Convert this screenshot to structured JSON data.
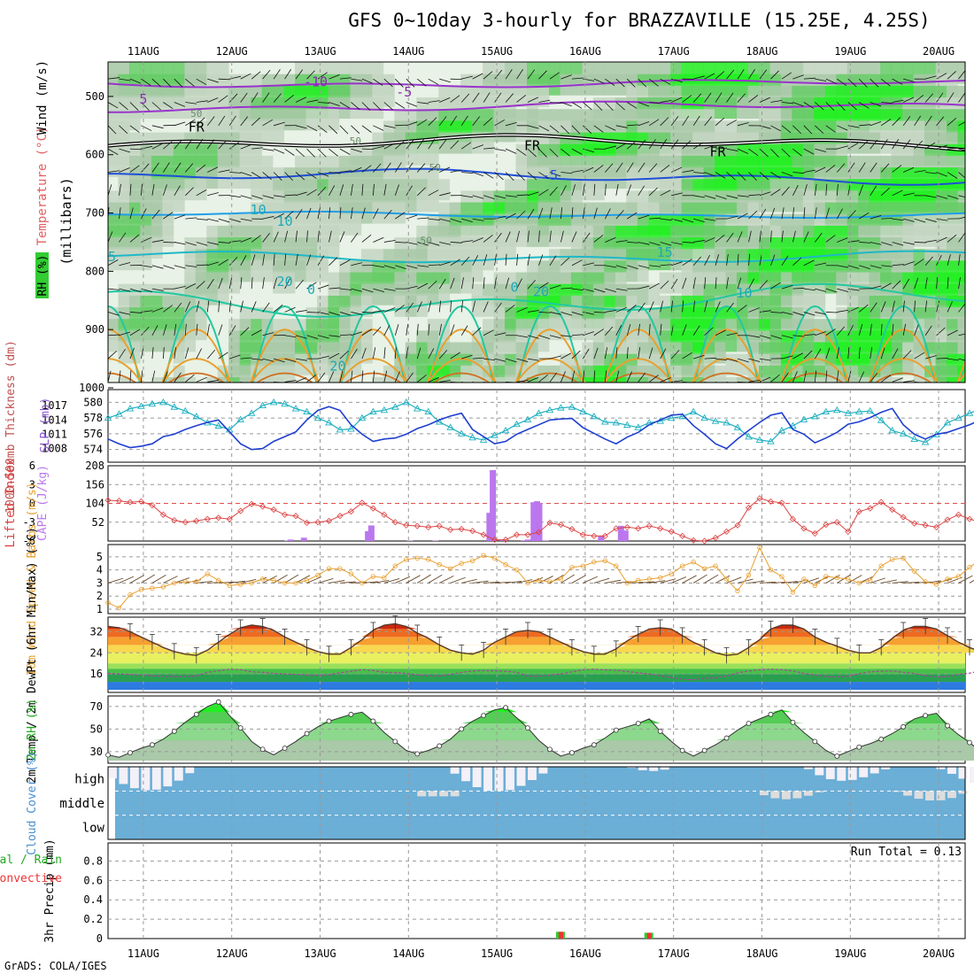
{
  "chart_data": [
    {
      "type": "contour",
      "name": "Pressure-level cross section",
      "title": "GFS 0~10day 3-hourly for BRAZZAVILLE (15.25E, 4.25S)",
      "ylabel": "(millibars)",
      "ylabel_parts": [
        "RH (%)",
        "Temperature (°C)",
        "Wind (m/s)"
      ],
      "y_ticks": [
        500,
        600,
        700,
        800,
        900,
        1000
      ],
      "ylim": [
        1000,
        450
      ],
      "contour_labels": [
        {
          "text": "-10",
          "day": 8.95,
          "p": 483
        },
        {
          "text": "-5",
          "day": 9.95,
          "p": 500
        },
        {
          "text": "5",
          "day": 7.0,
          "p": 512
        },
        {
          "text": "50",
          "day": 7.6,
          "p": 535
        },
        {
          "text": "FR",
          "day": 7.6,
          "p": 560
        },
        {
          "text": "FR",
          "day": 15.4,
          "p": 592
        },
        {
          "text": "FR",
          "day": 17.5,
          "p": 603
        },
        {
          "text": "50",
          "day": 9.4,
          "p": 582
        },
        {
          "text": "-5",
          "day": 11.6,
          "p": 643
        },
        {
          "text": "50",
          "day": 14.3,
          "p": 628
        },
        {
          "text": "10",
          "day": 8.3,
          "p": 702
        },
        {
          "text": "10",
          "day": 12.6,
          "p": 722
        },
        {
          "text": "50",
          "day": 10.2,
          "p": 753
        },
        {
          "text": "15",
          "day": 6.6,
          "p": 783
        },
        {
          "text": "15",
          "day": 16.9,
          "p": 775
        },
        {
          "text": "20",
          "day": 12.6,
          "p": 825
        },
        {
          "text": "20",
          "day": 15.5,
          "p": 843
        },
        {
          "text": "0",
          "day": 15.2,
          "p": 835
        },
        {
          "text": "0",
          "day": 8.9,
          "p": 839
        },
        {
          "text": "20",
          "day": 9.2,
          "p": 970
        },
        {
          "text": "10",
          "day": 17.8,
          "p": 845
        }
      ],
      "isotherms": [
        {
          "label": "-10",
          "color": "#9933cc",
          "base": 478,
          "amp": 8
        },
        {
          "label": "-5",
          "color": "#9933cc",
          "base": 518,
          "amp": 10
        },
        {
          "label": "FR",
          "color": "#000000",
          "base": 580,
          "amp": 14
        },
        {
          "label": "-5",
          "color": "#1f4fd8",
          "base": 638,
          "amp": 14
        },
        {
          "label": "10",
          "color": "#1f9ee8",
          "base": 703,
          "amp": 6
        },
        {
          "label": "15",
          "color": "#1fb8c8",
          "base": 775,
          "amp": 12
        },
        {
          "label": "20",
          "color": "#22c8a0",
          "base": 850,
          "amp": 30
        }
      ]
    },
    {
      "type": "line",
      "name": "Thickness and SLP",
      "ylabel_left": "1000-500mb Thickness (dm)",
      "ylabel_right": "SLP (mb)",
      "y_ticks_left": [
        574,
        576,
        578,
        580
      ],
      "y_ticks_right": [
        1008,
        1011,
        1014,
        1017
      ],
      "series": [
        {
          "name": "Thickness",
          "color": "#1fb0c0",
          "values": [
            578.0,
            578.5,
            579.2,
            579.5,
            579.8,
            580.0,
            579.4,
            578.9,
            578.2,
            577.4,
            577.0,
            576.5,
            577.8,
            578.6,
            579.6,
            580.0,
            579.8,
            579.2,
            578.8,
            578.0,
            577.4,
            576.5,
            576.6,
            578.0,
            578.8,
            579.0,
            579.4,
            580.0,
            579.2,
            578.8,
            577.5,
            576.8,
            576.0,
            575.5,
            575.2,
            575.8,
            576.4,
            577.2,
            577.8,
            578.6,
            579.0,
            579.3,
            579.4,
            578.8,
            578.2,
            577.5,
            577.4,
            577.1,
            576.8,
            577.4,
            577.6,
            578.0,
            578.2,
            578.8,
            578.0,
            577.6,
            577.4,
            576.8,
            575.6,
            575.2,
            575.0,
            576.4,
            577.0,
            577.8,
            578.2,
            578.8,
            579.0,
            578.6,
            578.8,
            578.9,
            577.7,
            576.4,
            576.0,
            575.3,
            574.9,
            575.9,
            577.4,
            578.0,
            578.6,
            579.2,
            578.8,
            578.5,
            579.0,
            579.2,
            577.6,
            576.7,
            576.0,
            575.4,
            574.2,
            574.0,
            574.8,
            575.8,
            576.8,
            577.4,
            577.3,
            577.2,
            577.1,
            577.0,
            576.6,
            576.1,
            575.6,
            575.2,
            574.9
          ]
        },
        {
          "name": "SLP",
          "color": "#1f3fd0",
          "values": [
            1010.0,
            1009.0,
            1008.2,
            1008.5,
            1009.0,
            1010.5,
            1011.0,
            1012.0,
            1012.8,
            1013.5,
            1014.0,
            1011.5,
            1009.0,
            1007.8,
            1008.0,
            1009.5,
            1010.5,
            1011.5,
            1014.0,
            1016.0,
            1016.8,
            1016.0,
            1013.0,
            1011.0,
            1009.5,
            1010.0,
            1010.2,
            1011.0,
            1012.2,
            1013.0,
            1014.0,
            1014.8,
            1015.4,
            1012.0,
            1010.5,
            1009.0,
            1009.5,
            1011.0,
            1012.0,
            1013.0,
            1014.0,
            1014.2,
            1014.3,
            1012.4,
            1011.2,
            1010.0,
            1009.0,
            1010.4,
            1011.4,
            1013.0,
            1014.0,
            1015.0,
            1015.2,
            1012.8,
            1011.0,
            1009.0,
            1008.0,
            1010.0,
            1011.8,
            1013.5,
            1015.0,
            1015.5,
            1012.0,
            1011.0,
            1009.2,
            1010.2,
            1011.4,
            1013.1,
            1013.6,
            1014.5,
            1015.6,
            1016.4,
            1013.0,
            1011.0,
            1010.0,
            1011.0,
            1011.4,
            1012.2,
            1013.0,
            1014.0,
            1014.6,
            1016.0,
            1016.6,
            1017.3,
            1016.4,
            1016.5,
            1017.4,
            1018.0,
            1017.3,
            1014.0,
            1011.3,
            1012.6,
            1013.0,
            1013.4,
            1013.6,
            1014.0,
            1015.0,
            1016.4,
            1016.9,
            1017.0,
            1016.4,
            1016.0,
            1017.5
          ]
        }
      ]
    },
    {
      "type": "bar+line",
      "name": "CAPE and Lifted Index",
      "ylabel_left": "Lifted Index",
      "ylabel_right": "CAPE (J/kg)",
      "y_ticks_left": [
        -6,
        -3,
        0,
        3,
        6
      ],
      "y_ticks_right": [
        52,
        104,
        156,
        208
      ],
      "cape": [
        [
          16.2,
          1
        ],
        [
          16.5,
          4
        ],
        [
          17.7,
          9
        ],
        [
          23.5,
          27
        ],
        [
          23.8,
          43
        ],
        [
          27.3,
          1
        ],
        [
          29.6,
          1
        ],
        [
          34.5,
          78
        ],
        [
          34.8,
          196
        ],
        [
          35.7,
          3
        ],
        [
          37.6,
          2
        ],
        [
          38.0,
          4
        ],
        [
          38.5,
          107
        ],
        [
          38.8,
          110
        ],
        [
          39.0,
          105
        ],
        [
          39.6,
          1
        ],
        [
          44.6,
          14
        ],
        [
          46.4,
          42
        ],
        [
          46.8,
          29
        ]
      ],
      "lifted_index": [
        -0.5,
        -0.4,
        -0.2,
        -0.3,
        0.3,
        1.8,
        2.7,
        3.0,
        2.8,
        2.5,
        2.3,
        2.5,
        1.2,
        0.1,
        0.5,
        1.0,
        1.8,
        2.0,
        3.1,
        3.0,
        2.8,
        2.0,
        1.3,
        -0.1,
        0.8,
        1.8,
        3.0,
        3.5,
        3.6,
        3.8,
        3.6,
        4.2,
        4.1,
        4.4,
        5.0,
        5.8,
        5.8,
        5.0,
        5.0,
        4.6,
        3.1,
        3.4,
        4.1,
        5.0,
        5.2,
        5.2,
        4.0,
        3.8,
        4.0,
        3.6,
        4.0,
        4.5,
        5.2,
        5.9,
        6.0,
        5.5,
        4.5,
        3.5,
        0.7,
        -0.8,
        -0.3,
        -0.1,
        2.5,
        4.0,
        4.8,
        3.4,
        3.0,
        4.5,
        1.3,
        0.8,
        -0.2,
        1.0,
        2.2,
        3.2,
        3.5,
        3.8,
        2.6,
        1.8,
        2.5,
        3.0,
        3.7,
        4.3,
        5.5,
        6.2,
        5.6,
        5.8,
        4.7,
        4.3,
        3.9,
        3.6,
        3.2,
        2.4,
        0.8,
        0.6,
        0.8,
        1.2,
        1.9,
        2.6,
        2.4,
        2.5,
        3.2,
        4.0,
        4.2
      ]
    },
    {
      "type": "line",
      "name": "10m Wind",
      "ylabel": "10m Wind Speed & Barbs (m/s)",
      "y_ticks": [
        1,
        2,
        3,
        4,
        5
      ],
      "series": [
        {
          "name": "Speed",
          "color": "#e8a030",
          "values": [
            1.5,
            1.1,
            2.1,
            2.5,
            2.6,
            2.7,
            3.0,
            3.1,
            3.1,
            3.7,
            3.2,
            2.8,
            2.9,
            3.0,
            3.3,
            3.2,
            3.0,
            3.0,
            3.2,
            3.6,
            4.1,
            4.1,
            3.7,
            3.0,
            3.5,
            3.4,
            4.3,
            4.8,
            4.9,
            4.8,
            4.4,
            4.1,
            4.5,
            4.7,
            5.1,
            4.9,
            4.4,
            4.0,
            3.0,
            3.2,
            3.1,
            3.3,
            4.2,
            4.3,
            4.6,
            4.7,
            4.3,
            3.0,
            3.2,
            3.3,
            3.4,
            3.7,
            4.3,
            4.6,
            4.1,
            4.3,
            3.3,
            2.4,
            3.6,
            5.7,
            4.0,
            3.5,
            2.3,
            3.3,
            2.8,
            3.5,
            3.4,
            3.3,
            3.0,
            3.2,
            4.3,
            4.8,
            4.9,
            3.9,
            3.1,
            2.9,
            3.3,
            3.5,
            4.2,
            4.8,
            4.6,
            4.4,
            4.9,
            3.9,
            3.0,
            3.3,
            3.5,
            3.6,
            3.1,
            2.8,
            3.0,
            3.4,
            4.4,
            4.9,
            3.6,
            3.3,
            3.0,
            3.0,
            2.6,
            3.9,
            2.8,
            2.4,
            2.1
          ]
        }
      ]
    },
    {
      "type": "area",
      "name": "2m Temp and DewPt",
      "ylabel": "2m Temp / 2m DewPt (6hr Min/Max) (°C)",
      "y_ticks": [
        16,
        24,
        32
      ],
      "series": [
        {
          "name": "2m Temp",
          "color": "#b02010",
          "values": [
            34,
            33.5,
            32,
            30,
            28,
            26,
            24.5,
            23.5,
            23,
            25,
            28,
            31,
            33.5,
            34.5,
            34,
            32.5,
            30,
            28,
            26,
            24.5,
            23.5,
            23.5,
            26,
            29,
            32.5,
            34.5,
            35,
            34,
            31.5,
            29.5,
            27,
            25,
            24,
            23.5,
            25,
            28,
            30,
            32,
            32.5,
            32,
            30,
            28,
            26,
            24.5,
            23.5,
            23.5,
            25.5,
            28.5,
            31,
            33,
            33.5,
            33,
            30.5,
            28,
            26,
            24,
            23,
            23.5,
            26,
            29,
            33,
            34.5,
            34.5,
            33,
            30,
            28,
            26.5,
            25,
            24,
            24,
            26,
            29.5,
            32.5,
            34,
            34,
            33,
            30.5,
            28,
            26,
            24.5,
            23.5,
            23.5,
            25.5,
            28,
            30.5,
            32.5,
            33,
            32,
            29.5,
            27.5,
            26,
            24,
            23,
            23,
            24.5,
            28,
            31.5,
            33.5,
            34,
            32.5,
            30,
            28,
            26,
            24.5,
            23
          ]
        },
        {
          "name": "2m DewPt",
          "color": "#aa4499",
          "values": [
            16.2,
            16.0,
            15.8,
            15.6,
            15.3,
            15.1,
            15.0,
            15.0,
            15.2,
            16.6,
            17.2,
            17.8,
            17.6,
            16.8,
            16.6,
            16.2,
            16.0,
            15.8,
            15.6,
            15.4,
            15.7,
            16.4,
            17.0,
            17.6,
            17.3,
            16.6,
            16.5,
            16.2,
            15.6,
            15.3,
            15.2,
            15.8,
            16.6,
            17.1,
            17.3,
            17.2,
            17.0,
            16.6,
            15.2,
            15.0,
            15.6,
            16.0,
            16.8,
            17.6,
            17.8,
            17.5,
            17.4,
            16.9,
            16.4,
            16.0,
            15.3,
            14.6,
            14.0,
            13.8,
            14.4,
            14.5,
            15.2,
            16.4,
            17.1,
            17.6,
            17.8,
            17.6,
            17.1,
            16.2,
            15.6,
            15.0,
            14.8,
            15.1,
            16.1,
            16.8,
            17.0,
            17.1,
            16.6,
            16.2,
            15.3,
            14.8,
            15.0,
            15.8,
            16.3,
            17.1,
            17.0,
            17.2,
            17.4,
            17.3,
            16.6,
            15.6,
            14.8,
            14.8,
            15.2,
            16.1,
            16.6,
            17.1,
            17.6,
            17.6,
            16.2,
            15.2,
            15.0,
            14.8,
            14.8,
            15.6,
            16.2,
            16.6,
            16.8
          ]
        }
      ]
    },
    {
      "type": "area",
      "name": "2m RH",
      "ylabel": "2m RH (%)",
      "y_ticks": [
        30,
        50,
        70
      ],
      "series": [
        {
          "name": "2m RH",
          "color": "#22cc22",
          "values": [
            27,
            25,
            29,
            33,
            36,
            41,
            48,
            56,
            63,
            70,
            74,
            62,
            51,
            39,
            32,
            27,
            33,
            39,
            46,
            52,
            57,
            60,
            63,
            65,
            57,
            47,
            39,
            31,
            28,
            31,
            35,
            41,
            50,
            57,
            62,
            67,
            69,
            60,
            51,
            40,
            32,
            26,
            29,
            33,
            36,
            42,
            49,
            52,
            55,
            59,
            48,
            39,
            31,
            26,
            31,
            36,
            42,
            49,
            55,
            59,
            63,
            67,
            56,
            47,
            39,
            31,
            26,
            30,
            34,
            37,
            41,
            46,
            52,
            59,
            62,
            64,
            53,
            45,
            38,
            30,
            27,
            28,
            33,
            41,
            50,
            58,
            63,
            69,
            70,
            58,
            51,
            39,
            31,
            28,
            30,
            36,
            44,
            52,
            60,
            65,
            64,
            58,
            48
          ]
        }
      ]
    },
    {
      "type": "heatmap",
      "name": "Cloud Cover",
      "ylabel": "Cloud Cover (%)",
      "rows": [
        "high",
        "middle",
        "low"
      ]
    },
    {
      "type": "bar",
      "name": "3hr Precip",
      "ylabel": "3hr Precip (mm)",
      "ylabel_left": [
        "tal / Rain",
        "Convective"
      ],
      "y_ticks": [
        0,
        0.2,
        0.4,
        0.6,
        0.8
      ],
      "ylim": [
        0,
        0.95
      ],
      "run_total_label": "Run Total = 0.13",
      "bars": [
        {
          "day": 15.72,
          "total": 0.07,
          "convective": 0.07
        },
        {
          "day": 16.72,
          "total": 0.06,
          "convective": 0.06
        }
      ]
    }
  ],
  "x_axis": {
    "date_labels": [
      "11AUG",
      "12AUG",
      "13AUG",
      "14AUG",
      "15AUG",
      "16AUG",
      "17AUG",
      "18AUG",
      "19AUG",
      "20AUG"
    ]
  },
  "footer": "GrADS: COLA/IGES",
  "colors": {
    "rh_green": "#33cc33",
    "rh_light": "#ccf2cc",
    "cloud_blue": "#6baed6",
    "cloud_empty": "#f3f0f8"
  }
}
